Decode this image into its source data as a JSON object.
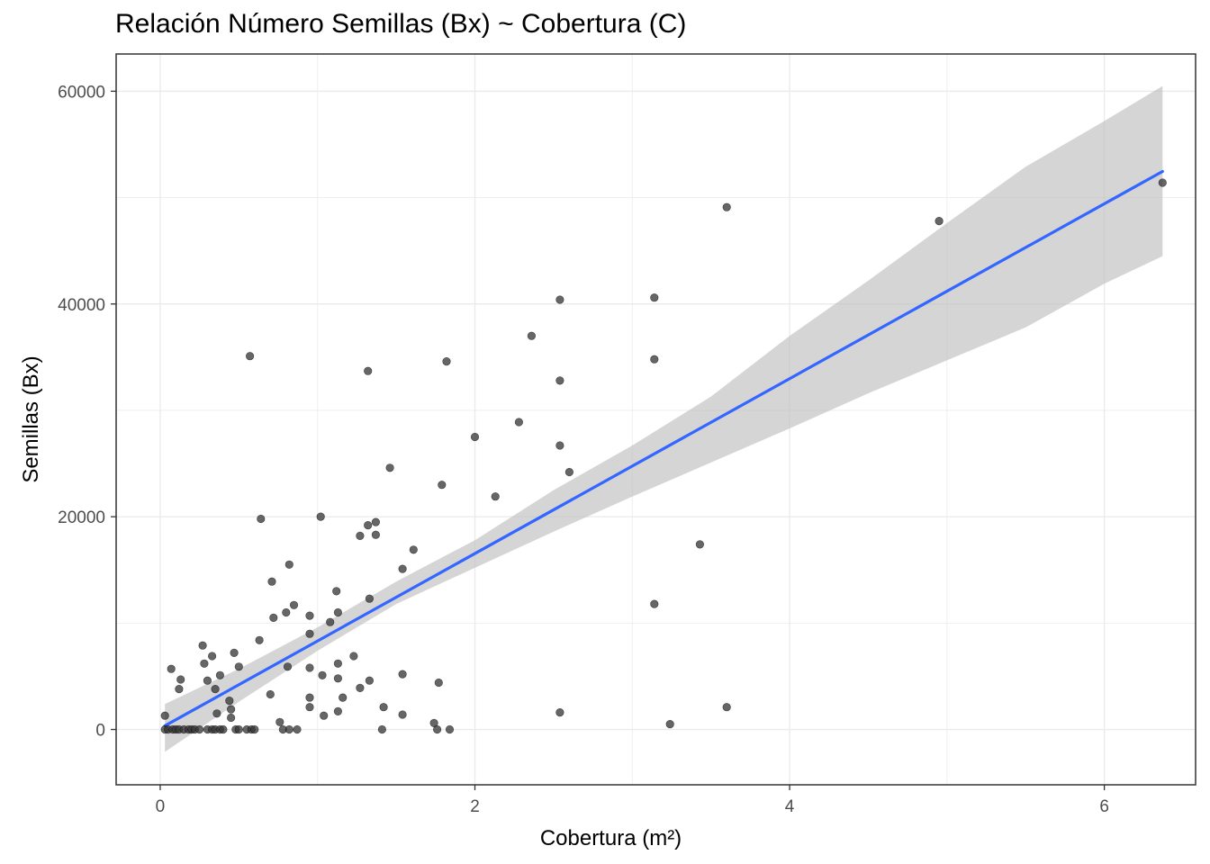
{
  "chart_data": {
    "type": "scatter",
    "title": "Relación Número Semillas (Bx) ~ Cobertura (C)",
    "xlabel": "Cobertura (m²)",
    "ylabel": "Semillas (Bx)",
    "xlim": [
      -0.28,
      6.58
    ],
    "ylim": [
      -5200,
      63500
    ],
    "x_ticks": [
      0,
      2,
      4,
      6
    ],
    "y_ticks": [
      0,
      20000,
      40000,
      60000
    ],
    "x_tick_labels": [
      "0",
      "2",
      "4",
      "6"
    ],
    "y_tick_labels": [
      "0",
      "20000",
      "40000",
      "60000"
    ],
    "grid": true,
    "legend": "none",
    "colors": {
      "points": "#333333",
      "fit_line": "#3366ff",
      "ribbon": "#bfbfbf",
      "grid": "#ebebeb",
      "frame": "#333333"
    },
    "points": [
      [
        0.03,
        0
      ],
      [
        0.05,
        0
      ],
      [
        0.08,
        0
      ],
      [
        0.1,
        0
      ],
      [
        0.12,
        0
      ],
      [
        0.15,
        0
      ],
      [
        0.18,
        0
      ],
      [
        0.2,
        0
      ],
      [
        0.22,
        0
      ],
      [
        0.25,
        0
      ],
      [
        0.3,
        0
      ],
      [
        0.33,
        0
      ],
      [
        0.35,
        0
      ],
      [
        0.38,
        0
      ],
      [
        0.4,
        0
      ],
      [
        0.48,
        0
      ],
      [
        0.5,
        0
      ],
      [
        0.55,
        0
      ],
      [
        0.58,
        0
      ],
      [
        0.6,
        0
      ],
      [
        0.78,
        0
      ],
      [
        0.82,
        0
      ],
      [
        0.87,
        0
      ],
      [
        1.41,
        0
      ],
      [
        1.76,
        0
      ],
      [
        1.84,
        0
      ],
      [
        0.03,
        1300
      ],
      [
        0.07,
        5700
      ],
      [
        0.12,
        3800
      ],
      [
        0.13,
        4700
      ],
      [
        0.27,
        7900
      ],
      [
        0.28,
        6200
      ],
      [
        0.3,
        4600
      ],
      [
        0.33,
        6900
      ],
      [
        0.35,
        3800
      ],
      [
        0.36,
        1500
      ],
      [
        0.38,
        5100
      ],
      [
        0.44,
        2700
      ],
      [
        0.45,
        1900
      ],
      [
        0.45,
        1100
      ],
      [
        0.47,
        7200
      ],
      [
        0.5,
        5900
      ],
      [
        0.57,
        35100
      ],
      [
        0.63,
        8400
      ],
      [
        0.64,
        19800
      ],
      [
        0.7,
        3300
      ],
      [
        0.71,
        13900
      ],
      [
        0.72,
        10500
      ],
      [
        0.76,
        700
      ],
      [
        0.8,
        11000
      ],
      [
        0.81,
        5900
      ],
      [
        0.82,
        15500
      ],
      [
        0.85,
        11700
      ],
      [
        0.95,
        10700
      ],
      [
        0.95,
        9000
      ],
      [
        0.95,
        5800
      ],
      [
        0.95,
        3000
      ],
      [
        0.95,
        2100
      ],
      [
        1.02,
        20000
      ],
      [
        1.03,
        5100
      ],
      [
        1.04,
        1300
      ],
      [
        1.08,
        10100
      ],
      [
        1.12,
        13000
      ],
      [
        1.13,
        11000
      ],
      [
        1.13,
        6200
      ],
      [
        1.13,
        4800
      ],
      [
        1.13,
        1700
      ],
      [
        1.16,
        3000
      ],
      [
        1.23,
        6900
      ],
      [
        1.27,
        18200
      ],
      [
        1.27,
        3900
      ],
      [
        1.32,
        33700
      ],
      [
        1.32,
        19200
      ],
      [
        1.33,
        12300
      ],
      [
        1.33,
        4600
      ],
      [
        1.37,
        19500
      ],
      [
        1.37,
        18300
      ],
      [
        1.42,
        2100
      ],
      [
        1.46,
        24600
      ],
      [
        1.54,
        15100
      ],
      [
        1.54,
        5200
      ],
      [
        1.54,
        1400
      ],
      [
        1.61,
        16900
      ],
      [
        1.74,
        600
      ],
      [
        1.77,
        4400
      ],
      [
        1.79,
        23000
      ],
      [
        1.82,
        34600
      ],
      [
        2.0,
        27500
      ],
      [
        2.13,
        21900
      ],
      [
        2.28,
        28900
      ],
      [
        2.36,
        37000
      ],
      [
        2.54,
        40400
      ],
      [
        2.54,
        32800
      ],
      [
        2.54,
        26700
      ],
      [
        2.54,
        1600
      ],
      [
        2.6,
        24200
      ],
      [
        3.14,
        40600
      ],
      [
        3.14,
        34800
      ],
      [
        3.14,
        11800
      ],
      [
        3.24,
        500
      ],
      [
        3.43,
        17400
      ],
      [
        3.6,
        49100
      ],
      [
        3.6,
        2100
      ],
      [
        4.95,
        47800
      ],
      [
        6.37,
        51400
      ]
    ],
    "fit_line": {
      "intercept": 100,
      "slope": 8220,
      "x": [
        0.03,
        6.37
      ]
    },
    "ribbon": [
      {
        "x": 0.03,
        "lower": -2100,
        "upper": 2400
      },
      {
        "x": 0.5,
        "lower": 2600,
        "upper": 5700
      },
      {
        "x": 1.0,
        "lower": 7400,
        "upper": 9600
      },
      {
        "x": 1.5,
        "lower": 11800,
        "upper": 13900
      },
      {
        "x": 2.0,
        "lower": 15200,
        "upper": 17800
      },
      {
        "x": 2.5,
        "lower": 18600,
        "upper": 22500
      },
      {
        "x": 3.0,
        "lower": 21900,
        "upper": 26700
      },
      {
        "x": 3.5,
        "lower": 25100,
        "upper": 31300
      },
      {
        "x": 4.0,
        "lower": 28300,
        "upper": 37000
      },
      {
        "x": 4.5,
        "lower": 31600,
        "upper": 42200
      },
      {
        "x": 5.0,
        "lower": 34700,
        "upper": 47600
      },
      {
        "x": 5.5,
        "lower": 37800,
        "upper": 52900
      },
      {
        "x": 6.0,
        "lower": 41900,
        "upper": 57200
      },
      {
        "x": 6.37,
        "lower": 44500,
        "upper": 60500
      }
    ]
  }
}
